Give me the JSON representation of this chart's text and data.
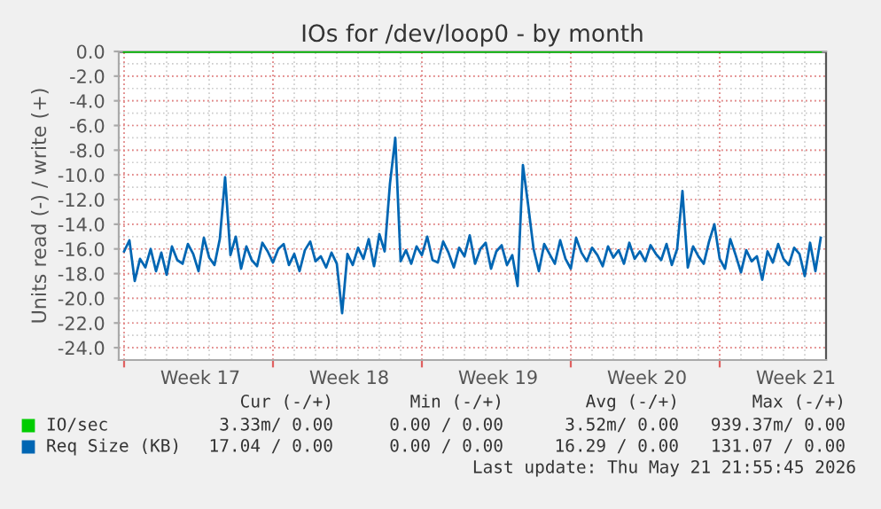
{
  "chart_data": {
    "type": "line",
    "title": "IOs for /dev/loop0 - by month",
    "ylabel": "Units read (-) / write (+)",
    "xlim": [
      "2026-04-19T18:00",
      "2026-05-23T00:00"
    ],
    "ylim": [
      -25,
      0
    ],
    "xticks": [
      {
        "value": "2026-04-20",
        "label": null
      },
      {
        "value": "2026-04-27",
        "label": null
      },
      {
        "value": "2026-05-04",
        "label": null
      },
      {
        "value": "2026-05-11",
        "label": null
      },
      {
        "value": "2026-05-18",
        "label": null
      },
      {
        "value": "2026-04-23T14:00",
        "label": "Week 17"
      },
      {
        "value": "2026-04-30T14:00",
        "label": "Week 18"
      },
      {
        "value": "2026-05-07T14:00",
        "label": "Week 19"
      },
      {
        "value": "2026-05-14T14:00",
        "label": "Week 20"
      },
      {
        "value": "2026-05-21T14:00",
        "label": "Week 21"
      }
    ],
    "yticks": [
      {
        "value": 0,
        "label": "0.0"
      },
      {
        "value": -2,
        "label": "-2.0"
      },
      {
        "value": -4,
        "label": "-4.0"
      },
      {
        "value": -6,
        "label": "-6.0"
      },
      {
        "value": -8,
        "label": "-8.0"
      },
      {
        "value": -10,
        "label": "-10.0"
      },
      {
        "value": -12,
        "label": "-12.0"
      },
      {
        "value": -14,
        "label": "-14.0"
      },
      {
        "value": -16,
        "label": "-16.0"
      },
      {
        "value": -18,
        "label": "-18.0"
      },
      {
        "value": -20,
        "label": "-20.0"
      },
      {
        "value": -22,
        "label": "-22.0"
      },
      {
        "value": -24,
        "label": "-24.0"
      }
    ],
    "grid": true,
    "legend": "bottom",
    "marker": "none",
    "line_style": "solid",
    "series": [
      {
        "name": "IO/sec",
        "color": "#00cc00",
        "x": [
          "2026-04-20T00:00",
          "2026-05-22T18:00"
        ],
        "values": [
          0,
          0
        ]
      },
      {
        "name": "Req Size (KB)",
        "color": "#0066b3",
        "x": [
          "2026-04-20T00:00",
          "2026-04-20T06:00",
          "2026-04-20T12:00",
          "2026-04-20T18:00",
          "2026-04-21T00:00",
          "2026-04-21T06:00",
          "2026-04-21T12:00",
          "2026-04-21T18:00",
          "2026-04-22T00:00",
          "2026-04-22T06:00",
          "2026-04-22T12:00",
          "2026-04-22T18:00",
          "2026-04-23T00:00",
          "2026-04-23T06:00",
          "2026-04-23T12:00",
          "2026-04-23T18:00",
          "2026-04-24T00:00",
          "2026-04-24T06:00",
          "2026-04-24T12:00",
          "2026-04-24T18:00",
          "2026-04-25T00:00",
          "2026-04-25T06:00",
          "2026-04-25T12:00",
          "2026-04-25T18:00",
          "2026-04-26T00:00",
          "2026-04-26T06:00",
          "2026-04-26T12:00",
          "2026-04-26T18:00",
          "2026-04-27T00:00",
          "2026-04-27T06:00",
          "2026-04-27T12:00",
          "2026-04-27T18:00",
          "2026-04-28T00:00",
          "2026-04-28T06:00",
          "2026-04-28T12:00",
          "2026-04-28T18:00",
          "2026-04-29T00:00",
          "2026-04-29T06:00",
          "2026-04-29T12:00",
          "2026-04-29T18:00",
          "2026-04-30T00:00",
          "2026-04-30T06:00",
          "2026-04-30T12:00",
          "2026-04-30T18:00",
          "2026-05-01T00:00",
          "2026-05-01T06:00",
          "2026-05-01T12:00",
          "2026-05-01T18:00",
          "2026-05-02T00:00",
          "2026-05-02T06:00",
          "2026-05-02T12:00",
          "2026-05-02T18:00",
          "2026-05-03T00:00",
          "2026-05-03T06:00",
          "2026-05-03T12:00",
          "2026-05-03T18:00",
          "2026-05-04T00:00",
          "2026-05-04T06:00",
          "2026-05-04T12:00",
          "2026-05-04T18:00",
          "2026-05-05T00:00",
          "2026-05-05T06:00",
          "2026-05-05T12:00",
          "2026-05-05T18:00",
          "2026-05-06T00:00",
          "2026-05-06T06:00",
          "2026-05-06T12:00",
          "2026-05-06T18:00",
          "2026-05-07T00:00",
          "2026-05-07T06:00",
          "2026-05-07T12:00",
          "2026-05-07T18:00",
          "2026-05-08T00:00",
          "2026-05-08T06:00",
          "2026-05-08T12:00",
          "2026-05-08T18:00",
          "2026-05-09T00:00",
          "2026-05-09T06:00",
          "2026-05-09T12:00",
          "2026-05-09T18:00",
          "2026-05-10T00:00",
          "2026-05-10T06:00",
          "2026-05-10T12:00",
          "2026-05-10T18:00",
          "2026-05-11T00:00",
          "2026-05-11T06:00",
          "2026-05-11T12:00",
          "2026-05-11T18:00",
          "2026-05-12T00:00",
          "2026-05-12T06:00",
          "2026-05-12T12:00",
          "2026-05-12T18:00",
          "2026-05-13T00:00",
          "2026-05-13T06:00",
          "2026-05-13T12:00",
          "2026-05-13T18:00",
          "2026-05-14T00:00",
          "2026-05-14T06:00",
          "2026-05-14T12:00",
          "2026-05-14T18:00",
          "2026-05-15T00:00",
          "2026-05-15T06:00",
          "2026-05-15T12:00",
          "2026-05-15T18:00",
          "2026-05-16T00:00",
          "2026-05-16T06:00",
          "2026-05-16T12:00",
          "2026-05-16T18:00",
          "2026-05-17T00:00",
          "2026-05-17T06:00",
          "2026-05-17T12:00",
          "2026-05-17T18:00",
          "2026-05-18T00:00",
          "2026-05-18T06:00",
          "2026-05-18T12:00",
          "2026-05-18T18:00",
          "2026-05-19T00:00",
          "2026-05-19T06:00",
          "2026-05-19T12:00",
          "2026-05-19T18:00",
          "2026-05-20T00:00",
          "2026-05-20T06:00",
          "2026-05-20T12:00",
          "2026-05-20T18:00",
          "2026-05-21T00:00",
          "2026-05-21T06:00",
          "2026-05-21T12:00",
          "2026-05-21T18:00",
          "2026-05-22T00:00",
          "2026-05-22T06:00",
          "2026-05-22T12:00",
          "2026-05-22T18:00"
        ],
        "values": [
          -16.2,
          -15.3,
          -18.6,
          -16.8,
          -17.5,
          -16.0,
          -17.8,
          -16.3,
          -18.1,
          -15.8,
          -16.9,
          -17.2,
          -15.6,
          -16.4,
          -17.8,
          -15.1,
          -16.7,
          -17.3,
          -15.2,
          -10.2,
          -16.5,
          -15.0,
          -17.6,
          -15.8,
          -16.9,
          -17.4,
          -15.5,
          -16.2,
          -17.1,
          -16.0,
          -15.6,
          -17.3,
          -16.4,
          -17.8,
          -16.1,
          -15.4,
          -17.0,
          -16.6,
          -17.5,
          -16.3,
          -17.2,
          -21.2,
          -16.4,
          -17.3,
          -15.9,
          -16.8,
          -15.2,
          -17.4,
          -14.8,
          -16.2,
          -10.7,
          -7.0,
          -17.0,
          -16.1,
          -17.2,
          -15.8,
          -16.5,
          -15.0,
          -16.9,
          -17.1,
          -15.4,
          -16.3,
          -17.5,
          -15.9,
          -16.6,
          -14.9,
          -17.2,
          -16.0,
          -15.5,
          -17.6,
          -16.2,
          -15.7,
          -17.3,
          -16.5,
          -19.0,
          -9.2,
          -12.5,
          -16.0,
          -17.8,
          -15.6,
          -16.4,
          -17.2,
          -15.3,
          -16.8,
          -17.6,
          -15.1,
          -16.3,
          -17.0,
          -15.9,
          -16.5,
          -17.4,
          -15.8,
          -16.7,
          -16.1,
          -17.2,
          -15.5,
          -16.8,
          -16.2,
          -17.0,
          -15.7,
          -16.4,
          -16.9,
          -15.6,
          -17.3,
          -16.0,
          -11.3,
          -17.5,
          -15.8,
          -16.6,
          -17.2,
          -15.4,
          -14.0,
          -16.8,
          -17.6,
          -15.2,
          -16.5,
          -17.9,
          -16.1,
          -17.0,
          -16.6,
          -18.5,
          -16.2,
          -17.1,
          -15.6,
          -16.8,
          -17.3,
          -15.9,
          -16.4,
          -18.2,
          -15.5,
          -17.8,
          -15.1
        ]
      }
    ],
    "annotations": [
      "Cur (-/+)",
      "Min (-/+)",
      "Avg (-/+)",
      "Max (-/+)",
      "3.33m/ 0.00",
      "0.00 / 0.00",
      "3.52m/ 0.00",
      "939.37m/ 0.00",
      "17.04 / 0.00",
      "0.00 / 0.00",
      "16.29 / 0.00",
      "131.07 / 0.00",
      "Last update: Thu May 21 21:55:45 2026"
    ]
  }
}
